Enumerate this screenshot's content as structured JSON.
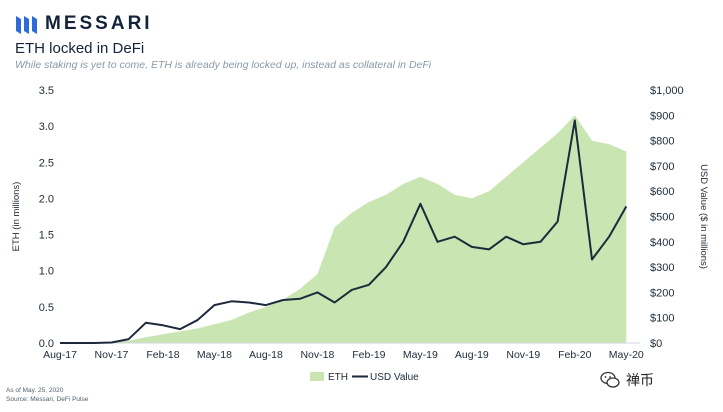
{
  "brand": {
    "name": "MESSARI",
    "logo_icon": "messari-logo-icon",
    "color": "#13233a"
  },
  "header": {
    "title": "ETH locked in DeFi",
    "subtitle": "While staking is yet to come, ETH is already being locked up, instead as collateral in DeFi"
  },
  "footnotes": {
    "as_of": "As of May. 25, 2020",
    "source": "Source: Messari, DeFi Pulse"
  },
  "watermark": {
    "icon": "wechat-icon",
    "text": "禅币"
  },
  "chart_data": {
    "type": "area",
    "xlabel": "",
    "ylabel": "ETH (in millions)",
    "y2label": "USD Value ($ in millions)",
    "x": [
      "2017-08",
      "2017-09",
      "2017-10",
      "2017-11",
      "2017-12",
      "2018-01",
      "2018-02",
      "2018-03",
      "2018-04",
      "2018-05",
      "2018-06",
      "2018-07",
      "2018-08",
      "2018-09",
      "2018-10",
      "2018-11",
      "2018-12",
      "2019-01",
      "2019-02",
      "2019-03",
      "2019-04",
      "2019-05",
      "2019-06",
      "2019-07",
      "2019-08",
      "2019-09",
      "2019-10",
      "2019-11",
      "2019-12",
      "2020-01",
      "2020-02",
      "2020-03",
      "2020-04",
      "2020-05"
    ],
    "x_ticks": [
      "Aug-17",
      "Nov-17",
      "Feb-18",
      "May-18",
      "Aug-18",
      "Nov-18",
      "Feb-19",
      "May-19",
      "Aug-19",
      "Nov-19",
      "Feb-20",
      "May-20"
    ],
    "ylim": [
      0,
      3.5
    ],
    "y_ticks": [
      "0.0",
      "0.5",
      "1.0",
      "1.5",
      "2.0",
      "2.5",
      "3.0",
      "3.5"
    ],
    "y2lim": [
      0,
      1000
    ],
    "y2_ticks": [
      "$0",
      "$100",
      "$200",
      "$300",
      "$400",
      "$500",
      "$600",
      "$700",
      "$800",
      "$900",
      "$1,000"
    ],
    "series": [
      {
        "name": "ETH",
        "axis": "left",
        "style": "area",
        "color": "#c9e6b2",
        "values": [
          0.0,
          0.0,
          0.0,
          0.01,
          0.03,
          0.08,
          0.12,
          0.16,
          0.2,
          0.26,
          0.32,
          0.42,
          0.5,
          0.6,
          0.75,
          0.95,
          1.6,
          1.8,
          1.95,
          2.05,
          2.2,
          2.3,
          2.2,
          2.05,
          2.0,
          2.1,
          2.3,
          2.5,
          2.7,
          2.9,
          3.15,
          2.8,
          2.75,
          2.65
        ]
      },
      {
        "name": "USD Value",
        "axis": "right",
        "style": "line",
        "color": "#1d2a3b",
        "values": [
          0,
          0,
          0,
          2,
          15,
          80,
          70,
          55,
          90,
          150,
          165,
          160,
          150,
          170,
          175,
          200,
          160,
          210,
          230,
          300,
          400,
          550,
          400,
          420,
          380,
          370,
          420,
          390,
          400,
          480,
          880,
          330,
          420,
          540
        ]
      }
    ],
    "legend": {
      "position": "bottom",
      "entries": [
        "ETH",
        "USD Value"
      ]
    },
    "grid": false
  }
}
